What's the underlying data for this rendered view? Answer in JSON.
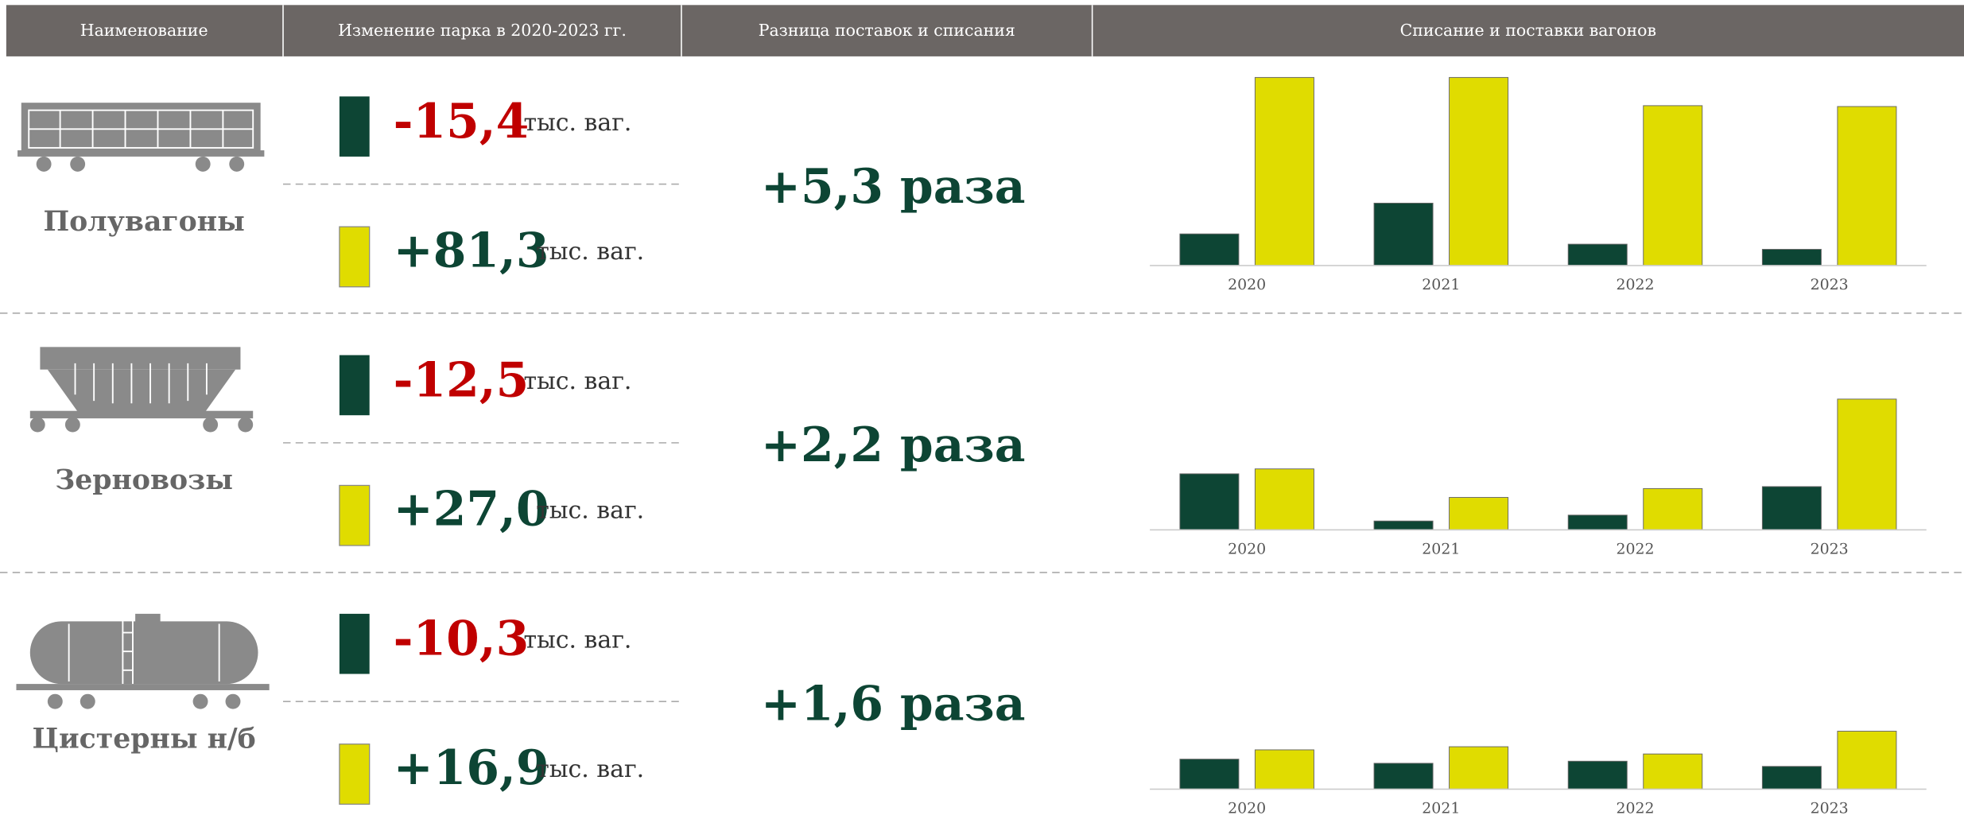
{
  "header": {
    "columns": [
      "Наименование",
      "Изменение парка в 2020-2023 гг.",
      "Разница поставок и списания",
      "Списание и поставки вагонов"
    ]
  },
  "rows": [
    {
      "name": "Полувагоны",
      "writeoff": {
        "value": "-15,4",
        "unit": "тыс. ваг."
      },
      "supply": {
        "value": "+81,3",
        "unit": "тыс. ваг."
      },
      "ratio": "+5,3 раза"
    },
    {
      "name": "Зерновозы",
      "writeoff": {
        "value": "-12,5",
        "unit": "тыс. ваг."
      },
      "supply": {
        "value": "+27,0",
        "unit": "тыс. ваг."
      },
      "ratio": "+2,2 раза"
    },
    {
      "name": "Цистерны н/б",
      "writeoff": {
        "value": "-10,3",
        "unit": "тыс. ваг."
      },
      "supply": {
        "value": "+16,9",
        "unit": "тыс. ваг."
      },
      "ratio": "+1,6 раза"
    }
  ],
  "chart_data": [
    {
      "type": "bar",
      "categories": [
        "2020",
        "2021",
        "2022",
        "2023"
      ],
      "ylim": [
        0,
        23
      ],
      "series": [
        {
          "color": "#0d4534",
          "values": [
            3.7,
            7.3,
            2.5,
            1.9
          ]
        },
        {
          "color": "#e0dc00",
          "values": [
            22.0,
            22.0,
            18.7,
            18.6
          ]
        }
      ]
    },
    {
      "type": "bar",
      "categories": [
        "2020",
        "2021",
        "2022",
        "2023"
      ],
      "ylim": [
        0,
        20
      ],
      "series": [
        {
          "color": "#0d4534",
          "values": [
            5.7,
            0.9,
            1.5,
            4.4
          ]
        },
        {
          "color": "#e0dc00",
          "values": [
            6.2,
            3.3,
            4.2,
            13.3
          ]
        }
      ]
    },
    {
      "type": "bar",
      "categories": [
        "2020",
        "2021",
        "2022",
        "2023"
      ],
      "ylim": [
        0,
        19
      ],
      "series": [
        {
          "color": "#0d4534",
          "values": [
            2.9,
            2.5,
            2.7,
            2.2
          ]
        },
        {
          "color": "#e0dc00",
          "values": [
            3.8,
            4.1,
            3.4,
            5.6
          ]
        }
      ]
    }
  ]
}
